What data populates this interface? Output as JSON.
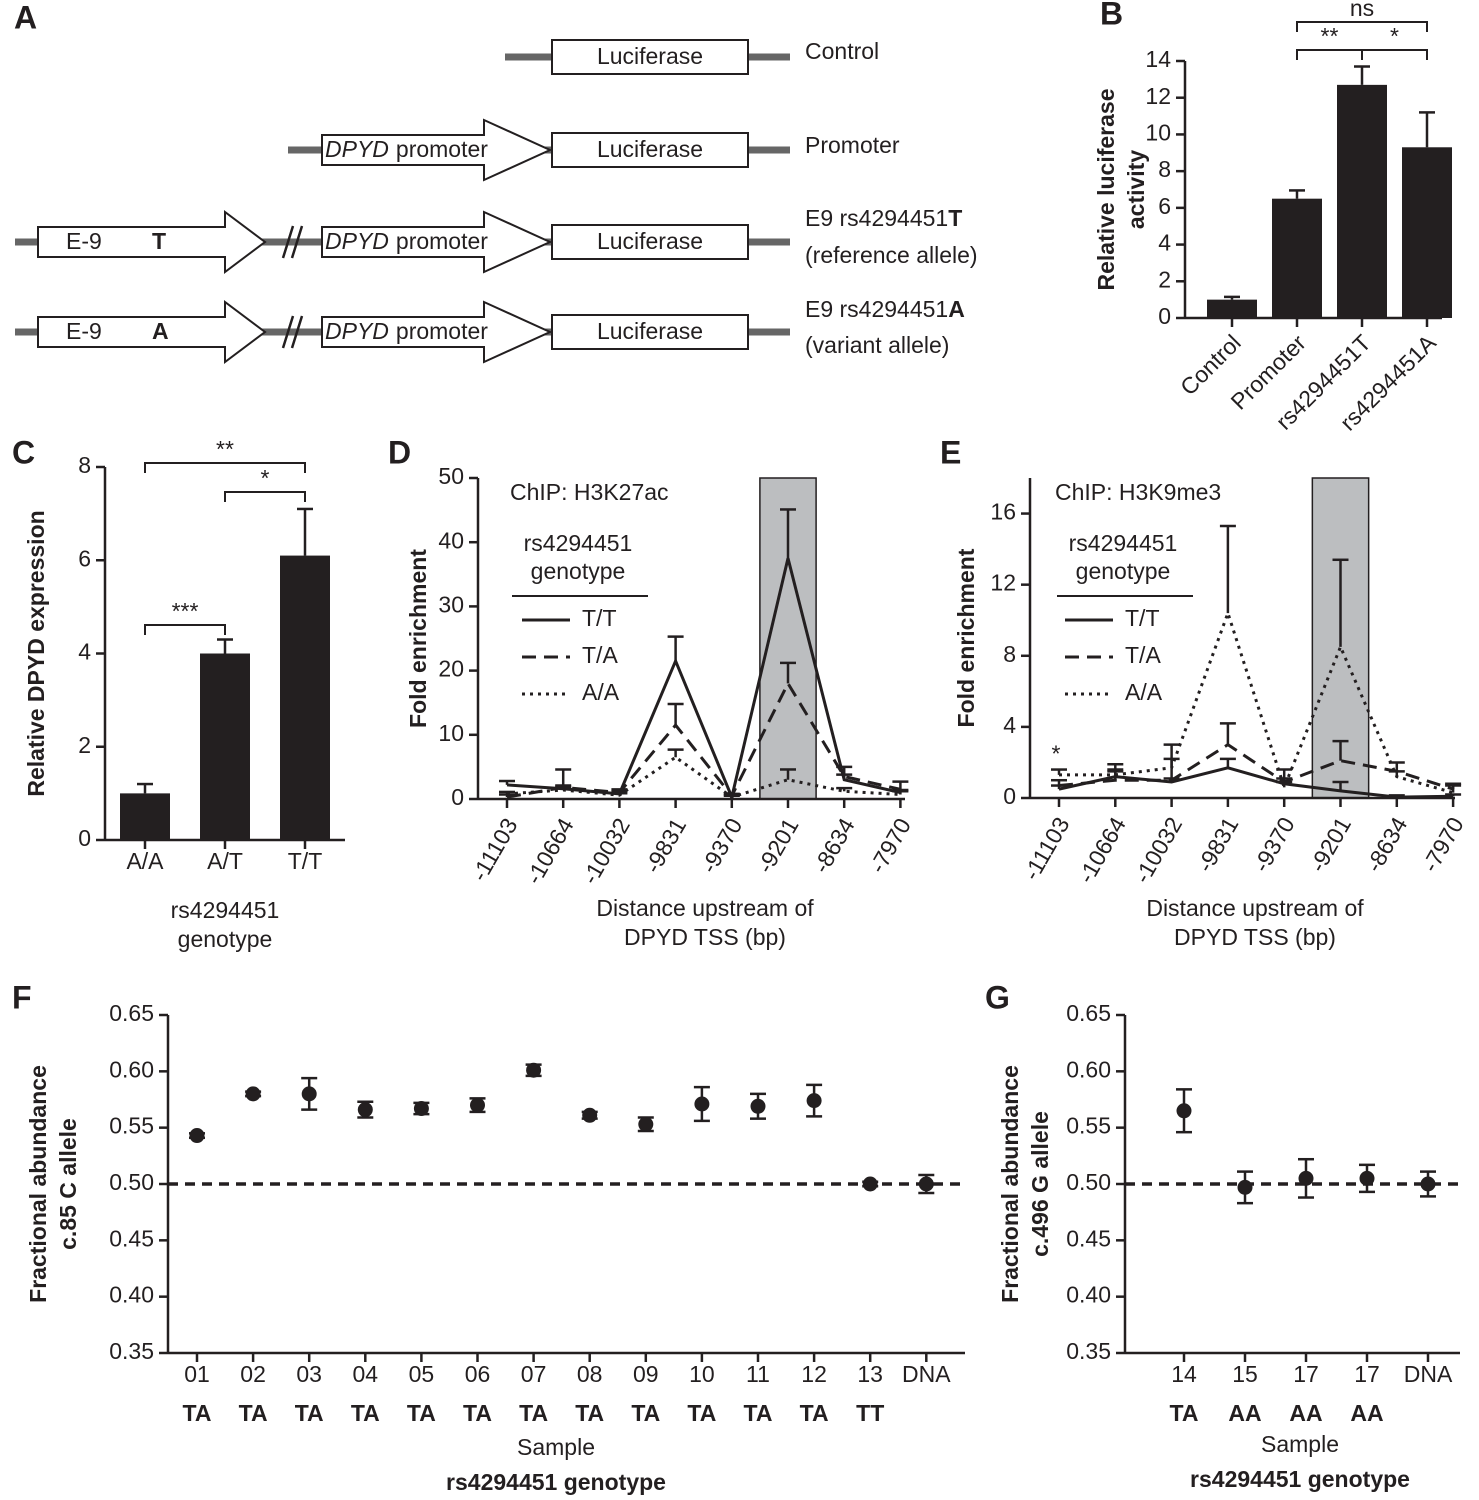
{
  "diagram": {
    "panel": "A",
    "constructs": [
      {
        "name": "Control",
        "luciferase": "Luciferase"
      },
      {
        "name": "Promoter",
        "promoter_gene": "DPYD",
        "promoter_word": "promoter",
        "luciferase": "Luciferase"
      },
      {
        "name": "E9 rs4294451",
        "allele": "T",
        "note": "(reference allele)",
        "enhancer": "E-9",
        "promoter_gene": "DPYD",
        "promoter_word": "promoter",
        "luciferase": "Luciferase"
      },
      {
        "name": "E9 rs4294451",
        "allele": "A",
        "note": "(variant allele)",
        "enhancer": "E-9",
        "promoter_gene": "DPYD",
        "promoter_word": "promoter",
        "luciferase": "Luciferase"
      }
    ]
  },
  "chart_data": [
    {
      "panel": "B",
      "type": "bar",
      "categories": [
        "Control",
        "Promoter",
        "rs4294451T",
        "rs4294451A"
      ],
      "values": [
        1.0,
        6.5,
        12.7,
        9.3
      ],
      "errors": [
        0.15,
        0.45,
        1.0,
        1.9
      ],
      "color": "#231f20",
      "ylabel": [
        "Relative luciferase",
        "activity"
      ],
      "ylim": [
        0,
        14
      ],
      "yticks": [
        0,
        2,
        4,
        6,
        8,
        10,
        12,
        14
      ],
      "annotations": [
        {
          "text": "**",
          "between": [
            "Promoter",
            "rs4294451T"
          ]
        },
        {
          "text": "*",
          "between": [
            "rs4294451T",
            "rs4294451A"
          ]
        },
        {
          "text": "ns",
          "between": [
            "Promoter",
            "rs4294451A"
          ]
        }
      ]
    },
    {
      "panel": "C",
      "type": "bar",
      "categories": [
        "A/A",
        "A/T",
        "T/T"
      ],
      "values": [
        1.0,
        4.0,
        6.1
      ],
      "errors": [
        0.2,
        0.3,
        1.0
      ],
      "color": "#231f20",
      "ylabel": [
        "Relative DPYD expression"
      ],
      "xlabel": [
        "rs4294451",
        "genotype"
      ],
      "ylim": [
        0,
        8
      ],
      "yticks": [
        0,
        2,
        4,
        6,
        8
      ],
      "annotations": [
        {
          "text": "***",
          "between": [
            "A/A",
            "A/T"
          ]
        },
        {
          "text": "*",
          "between": [
            "A/T",
            "T/T"
          ]
        },
        {
          "text": "**",
          "between": [
            "A/A",
            "T/T"
          ]
        }
      ]
    },
    {
      "panel": "D",
      "type": "line",
      "note": "ChIP: H3K27ac",
      "legend_title": [
        "rs4294451",
        "genotype"
      ],
      "categories": [
        "-11103",
        "-10664",
        "-10032",
        "-9831",
        "-9370",
        "-9201",
        "-8634",
        "-7970"
      ],
      "highlight": "-9201",
      "series": [
        {
          "name": "T/T",
          "style": "solid",
          "color": "#231f20",
          "values": [
            2.2,
            1.6,
            0.8,
            21.5,
            0.3,
            37.5,
            3.0,
            1.0
          ],
          "errors": [
            0.6,
            0.5,
            0.4,
            3.8,
            0.3,
            7.6,
            0.8,
            0.4
          ]
        },
        {
          "name": "T/A",
          "style": "dashed",
          "color": "#231f20",
          "values": [
            0.3,
            1.8,
            1.0,
            11.5,
            0.5,
            18.0,
            3.5,
            1.5
          ],
          "errors": [
            0.4,
            2.8,
            0.5,
            3.3,
            0.3,
            3.2,
            1.5,
            1.2
          ]
        },
        {
          "name": "A/A",
          "style": "dotted",
          "color": "#231f20",
          "values": [
            0.8,
            1.4,
            0.6,
            6.5,
            0.3,
            3.0,
            1.2,
            0.7
          ],
          "errors": [
            0.3,
            0.5,
            0.3,
            1.2,
            0.2,
            1.6,
            0.5,
            0.5
          ]
        }
      ],
      "ylabel": [
        "Fold enrichment"
      ],
      "xlabel": [
        "Distance upstream of",
        "DPYD TSS (bp)"
      ],
      "ylim": [
        0,
        50
      ],
      "yticks": [
        0,
        10,
        20,
        30,
        40,
        50
      ]
    },
    {
      "panel": "E",
      "type": "line",
      "note": "ChIP: H3K9me3",
      "legend_title": [
        "rs4294451",
        "genotype"
      ],
      "categories": [
        "-11103",
        "-10664",
        "-10032",
        "-9831",
        "-9370",
        "-9201",
        "-8634",
        "-7970"
      ],
      "highlight": "-9201",
      "series": [
        {
          "name": "T/T",
          "style": "solid",
          "color": "#231f20",
          "values": [
            0.5,
            1.2,
            0.9,
            1.7,
            0.8,
            0.4,
            0.05,
            0.1
          ],
          "errors": [
            0.2,
            0.3,
            0.2,
            0.5,
            0.3,
            0.5,
            0.1,
            0.1
          ]
        },
        {
          "name": "T/A",
          "style": "dashed",
          "color": "#231f20",
          "values": [
            0.7,
            1.0,
            1.0,
            3.0,
            0.9,
            2.1,
            1.5,
            0.5
          ],
          "errors": [
            0.3,
            0.9,
            2.0,
            1.2,
            0.7,
            1.1,
            0.5,
            0.3
          ]
        },
        {
          "name": "A/A",
          "style": "dotted",
          "color": "#231f20",
          "values": [
            1.3,
            1.3,
            1.7,
            10.4,
            0.6,
            8.5,
            1.2,
            0.3
          ],
          "errors": [
            0.3,
            0.3,
            0.5,
            4.9,
            0.3,
            4.9,
            0.3,
            0.4
          ]
        }
      ],
      "annotations": [
        {
          "text": "*",
          "at": "-11103"
        }
      ],
      "ylabel": [
        "Fold enrichment"
      ],
      "xlabel": [
        "Distance upstream of",
        "DPYD TSS (bp)"
      ],
      "ylim": [
        0,
        18
      ],
      "yticks": [
        0,
        4,
        8,
        12,
        16
      ]
    },
    {
      "panel": "F",
      "type": "point",
      "categories": [
        "01",
        "02",
        "03",
        "04",
        "05",
        "06",
        "07",
        "08",
        "09",
        "10",
        "11",
        "12",
        "13",
        "DNA"
      ],
      "genotypes": [
        "TA",
        "TA",
        "TA",
        "TA",
        "TA",
        "TA",
        "TA",
        "TA",
        "TA",
        "TA",
        "TA",
        "TA",
        "TT",
        null
      ],
      "values": [
        0.543,
        0.58,
        0.58,
        0.566,
        0.567,
        0.57,
        0.601,
        0.561,
        0.553,
        0.571,
        0.569,
        0.574,
        0.5,
        0.5
      ],
      "errors": [
        0.002,
        0.002,
        0.014,
        0.007,
        0.005,
        0.006,
        0.005,
        0.003,
        0.006,
        0.015,
        0.011,
        0.014,
        0.002,
        0.008
      ],
      "color": "#231f20",
      "reference_line": 0.5,
      "ylabel": [
        "Fractional abundance",
        "c.85 C allele"
      ],
      "xlabel": [
        "Sample",
        "rs4294451 genotype"
      ],
      "ylim": [
        0.35,
        0.65
      ],
      "yticks": [
        0.35,
        {
          "value": 0.4,
          "label": "0.40"
        },
        0.45,
        {
          "value": 0.5,
          "label": "0.50"
        },
        0.55,
        {
          "value": 0.6,
          "label": "0.60"
        },
        0.65
      ]
    },
    {
      "panel": "G",
      "type": "point",
      "categories": [
        "14",
        "15",
        "17",
        "17",
        "DNA"
      ],
      "genotypes": [
        "TA",
        "AA",
        "AA",
        "AA",
        null
      ],
      "values": [
        0.565,
        0.497,
        0.505,
        0.505,
        0.5
      ],
      "errors": [
        0.019,
        0.014,
        0.017,
        0.012,
        0.011
      ],
      "color": "#231f20",
      "reference_line": 0.5,
      "ylabel": [
        "Fractional abundance",
        "c.496 G allele"
      ],
      "xlabel": [
        "Sample",
        "rs4294451 genotype"
      ],
      "ylim": [
        0.35,
        0.65
      ],
      "yticks": [
        0.35,
        {
          "value": 0.4,
          "label": "0.40"
        },
        0.45,
        {
          "value": 0.5,
          "label": "0.50"
        },
        0.55,
        {
          "value": 0.6,
          "label": "0.60"
        },
        0.65
      ]
    }
  ]
}
